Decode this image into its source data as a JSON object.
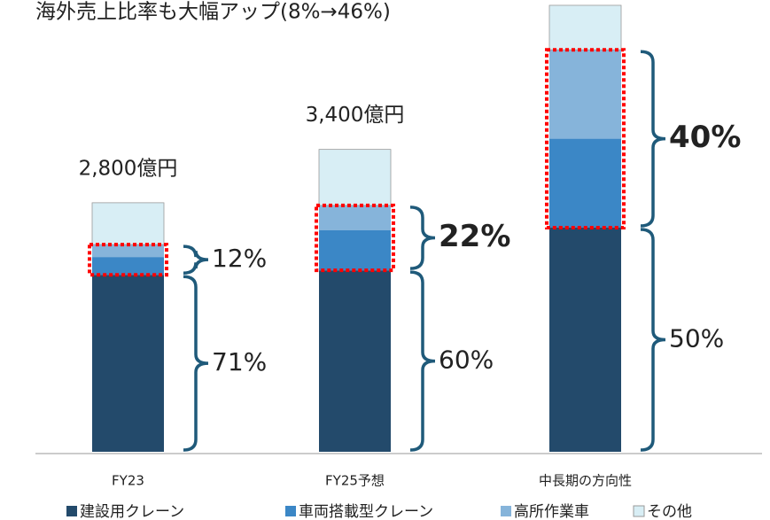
{
  "chart_data": {
    "type": "stacked_bar",
    "title": "海外売上比率も大幅アップ(8%→46%)",
    "categories": [
      "FY23",
      "FY25予想",
      "中長期の方向性"
    ],
    "series": [
      {
        "name": "建設用クレーン",
        "color": "#234a6b",
        "values": [
          1990,
          2040,
          2520
        ]
      },
      {
        "name": "車両搭載型クレーン",
        "color": "#3b87c6",
        "values": [
          200,
          450,
          1000
        ]
      },
      {
        "name": "高所作業車",
        "color": "#86b4da",
        "values": [
          140,
          280,
          1000
        ]
      },
      {
        "name": "その他",
        "color": "#d8eef5",
        "values": [
          470,
          630,
          500
        ]
      }
    ],
    "total_labels": [
      "2,800億円",
      "3,400億円",
      null
    ],
    "share_labels": [
      [
        {
          "text": "71%",
          "color": "#222222",
          "bold": false
        },
        {
          "text": "12%",
          "color": "#222222",
          "bold": false
        }
      ],
      [
        {
          "text": "60%",
          "color": "#222222",
          "bold": false
        },
        {
          "text": "22%",
          "color": "#ff0000",
          "bold": true
        }
      ],
      [
        {
          "text": "50%",
          "color": "#222222",
          "bold": false
        },
        {
          "text": "40%",
          "color": "#ff0000",
          "bold": true
        }
      ]
    ],
    "highlight_color": "#ff0000",
    "bracket_color": "#1f5a7a",
    "ylim": [
      0,
      5000
    ]
  }
}
